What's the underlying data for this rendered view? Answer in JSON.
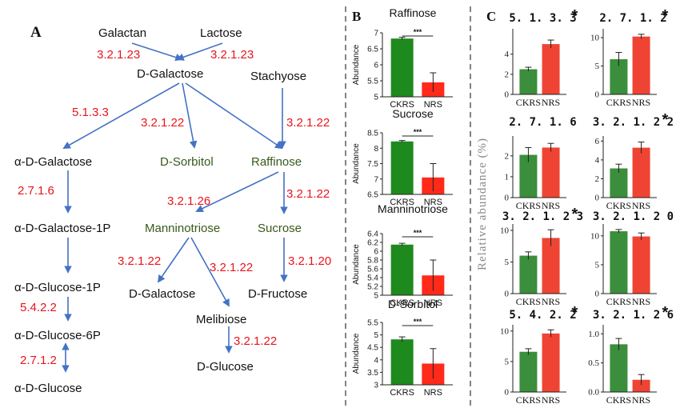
{
  "panel_labels": {
    "A": "A",
    "B": "B",
    "C": "C"
  },
  "pathway": {
    "nodes": {
      "galactan": "Galactan",
      "lactose": "Lactose",
      "d_galactose_top": "D-Galactose",
      "stachyose": "Stachyose",
      "alpha_d_galactose": "α-D-Galactose",
      "d_sorbitol": "D-Sorbitol",
      "raffinose": "Raffinose",
      "alpha_d_galactose_1p": "α-D-Galactose-1P",
      "manninotriose": "Manninotriose",
      "sucrose": "Sucrose",
      "alpha_d_glucose_1p": "α-D-Glucose-1P",
      "d_galactose_bottom": "D-Galactose",
      "d_fructose": "D-Fructose",
      "melibiose": "Melibiose",
      "alpha_d_glucose_6p": "α-D-Glucose-6P",
      "d_glucose": "D-Glucose",
      "alpha_d_glucose": "α-D-Glucose"
    },
    "enzymes": {
      "galactan_ec": "3.2.1.23",
      "lactose_ec": "3.2.1.23",
      "epimerase_ec": "5.1.3.3",
      "sorbitol_ec": "3.2.1.22",
      "stachyose_ec": "3.2.1.22",
      "galk_ec": "2.7.1.6",
      "manninotriose_ec": "3.2.1.26",
      "sucrose_ec": "3.2.1.22",
      "mann_gal_ec": "3.2.1.22",
      "mann_mel_ec": "3.2.1.22",
      "fructose_ec": "3.2.1.20",
      "pgm_ec": "5.4.2.2",
      "glucose_ec": "3.2.1.22",
      "glk_ec": "2.7.1.2"
    },
    "colors": {
      "ec": "#e8141b",
      "highlight": "#375a1b",
      "arrow": "#4472c4",
      "text": "#111111"
    }
  },
  "colors": {
    "CKRS": "#1e8a1e",
    "NRS": "#ff2a1a",
    "C_CKRS": "#3b8e3b",
    "C_NRS": "#ef4433"
  },
  "panel_b_ylabel": "Abundance",
  "panel_c_ylabel": "Relative abundance (%)",
  "chart_data": [
    {
      "type": "bar",
      "panel": "B",
      "title": "Raffinose",
      "ylabel": "Abundance",
      "categories": [
        "CKRS",
        "NRS"
      ],
      "values": [
        6.82,
        5.45
      ],
      "errors": [
        0.04,
        0.3
      ],
      "ylim": [
        5,
        7
      ],
      "yticks": [
        5,
        5.5,
        6,
        6.5,
        7
      ],
      "significance": "***"
    },
    {
      "type": "bar",
      "panel": "B",
      "title": "Sucrose",
      "ylabel": "Abundance",
      "categories": [
        "CKRS",
        "NRS"
      ],
      "values": [
        8.22,
        7.05
      ],
      "errors": [
        0.03,
        0.45
      ],
      "ylim": [
        6.5,
        8.5
      ],
      "yticks": [
        6.5,
        7,
        7.5,
        8,
        8.5
      ],
      "significance": "***"
    },
    {
      "type": "bar",
      "panel": "B",
      "title": "Manninotriose",
      "ylabel": "Abundance",
      "categories": [
        "CKRS",
        "NRS"
      ],
      "values": [
        6.15,
        5.45
      ],
      "errors": [
        0.03,
        0.35
      ],
      "ylim": [
        5,
        6.4
      ],
      "yticks": [
        5,
        5.2,
        5.4,
        5.6,
        5.8,
        6,
        6.2,
        6.4
      ],
      "significance": "***"
    },
    {
      "type": "bar",
      "panel": "B",
      "title": "D-Sorbitol",
      "ylabel": "Abundance",
      "categories": [
        "CKRS",
        "NRS"
      ],
      "values": [
        4.82,
        3.85
      ],
      "errors": [
        0.1,
        0.6
      ],
      "ylim": [
        3,
        5.5
      ],
      "yticks": [
        3,
        3.5,
        4,
        4.5,
        5,
        5.5
      ],
      "significance": "***"
    },
    {
      "type": "bar",
      "panel": "C",
      "title": "5.1.3.3",
      "star": "*",
      "categories": [
        "CKRS",
        "NRS"
      ],
      "values": [
        2.5,
        5.0
      ],
      "errors": [
        0.2,
        0.4
      ],
      "ylim": [
        0,
        6.2
      ],
      "yticks": [
        0,
        2,
        4
      ]
    },
    {
      "type": "bar",
      "panel": "C",
      "title": "2.7.1.2",
      "star": "*",
      "categories": [
        "CKRS",
        "NRS"
      ],
      "values": [
        6.2,
        10.2
      ],
      "errors": [
        1.2,
        0.4
      ],
      "ylim": [
        0,
        11
      ],
      "yticks": [
        0,
        5,
        10
      ]
    },
    {
      "type": "bar",
      "panel": "C",
      "title": "2.7.1.6",
      "star": "",
      "categories": [
        "CKRS",
        "NRS"
      ],
      "values": [
        2.05,
        2.4
      ],
      "errors": [
        0.35,
        0.2
      ],
      "ylim": [
        0,
        2.8
      ],
      "yticks": [
        0,
        1,
        2
      ]
    },
    {
      "type": "bar",
      "panel": "C",
      "title": "3.2.1.22",
      "star": "*",
      "categories": [
        "CKRS",
        "NRS"
      ],
      "values": [
        3.1,
        5.3
      ],
      "errors": [
        0.45,
        0.6
      ],
      "ylim": [
        0,
        6.2
      ],
      "yticks": [
        0,
        2,
        4,
        6
      ]
    },
    {
      "type": "bar",
      "panel": "C",
      "title": "3.2.1.23",
      "star": "*",
      "categories": [
        "CKRS",
        "NRS"
      ],
      "values": [
        6.0,
        8.8
      ],
      "errors": [
        0.6,
        1.3
      ],
      "ylim": [
        0,
        10.5
      ],
      "yticks": [
        0,
        5,
        10
      ]
    },
    {
      "type": "bar",
      "panel": "C",
      "title": "3.2.1.20",
      "star": "",
      "categories": [
        "CKRS",
        "NRS"
      ],
      "values": [
        10.8,
        9.9
      ],
      "errors": [
        0.3,
        0.6
      ],
      "ylim": [
        0,
        11.5
      ],
      "yticks": [
        0,
        5,
        10
      ]
    },
    {
      "type": "bar",
      "panel": "C",
      "title": "5.4.2.2",
      "star": "*",
      "categories": [
        "CKRS",
        "NRS"
      ],
      "values": [
        6.6,
        9.6
      ],
      "errors": [
        0.5,
        0.6
      ],
      "ylim": [
        0,
        10.5
      ],
      "yticks": [
        0,
        5,
        10
      ]
    },
    {
      "type": "bar",
      "panel": "C",
      "title": "3.2.1.26",
      "star": "*",
      "categories": [
        "CKRS",
        "NRS"
      ],
      "values": [
        0.82,
        0.21
      ],
      "errors": [
        0.1,
        0.09
      ],
      "ylim": [
        0,
        1.1
      ],
      "yticks": [
        0,
        0.5,
        1.0
      ],
      "yticklabels": [
        "0.0",
        "0.5",
        "1.0"
      ]
    }
  ]
}
